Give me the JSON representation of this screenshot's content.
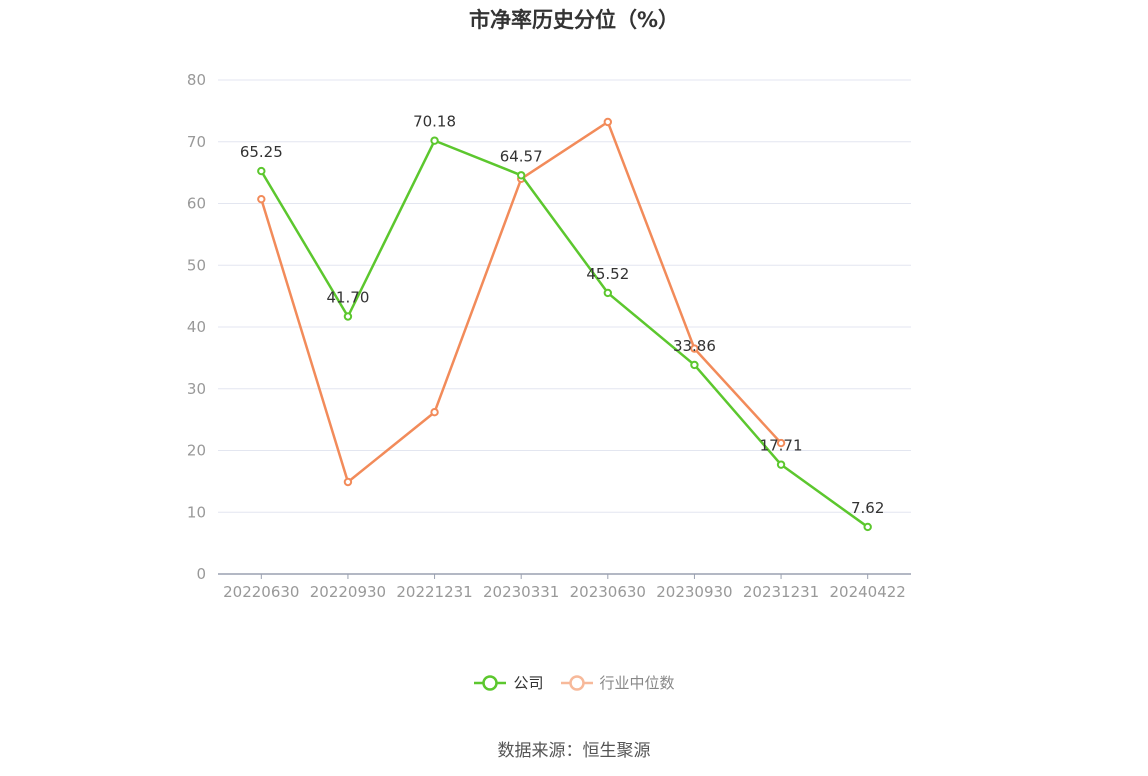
{
  "chart_data": {
    "type": "line",
    "title": "市净率历史分位（%）",
    "categories": [
      "20220630",
      "20220930",
      "20221231",
      "20230331",
      "20230630",
      "20230930",
      "20231231",
      "20240422"
    ],
    "ylim": [
      0,
      80
    ],
    "yticks": [
      0,
      10,
      20,
      30,
      40,
      50,
      60,
      70,
      80
    ],
    "grid": true,
    "legend_position": "bottom",
    "series": [
      {
        "name": "公司",
        "color": "#5cc72e",
        "values": [
          65.25,
          41.7,
          70.18,
          64.57,
          45.52,
          33.86,
          17.71,
          7.62
        ],
        "labels": [
          "65.25",
          "41.70",
          "70.18",
          "64.57",
          "45.52",
          "33.86",
          "17.71",
          "7.62"
        ]
      },
      {
        "name": "行业中位数",
        "color": "#f28b5a",
        "values": [
          60.7,
          14.9,
          26.2,
          64.0,
          73.2,
          36.5,
          21.2,
          null
        ]
      }
    ]
  },
  "legend": {
    "company": "公司",
    "industry": "行业中位数"
  },
  "source": "数据来源：恒生聚源"
}
